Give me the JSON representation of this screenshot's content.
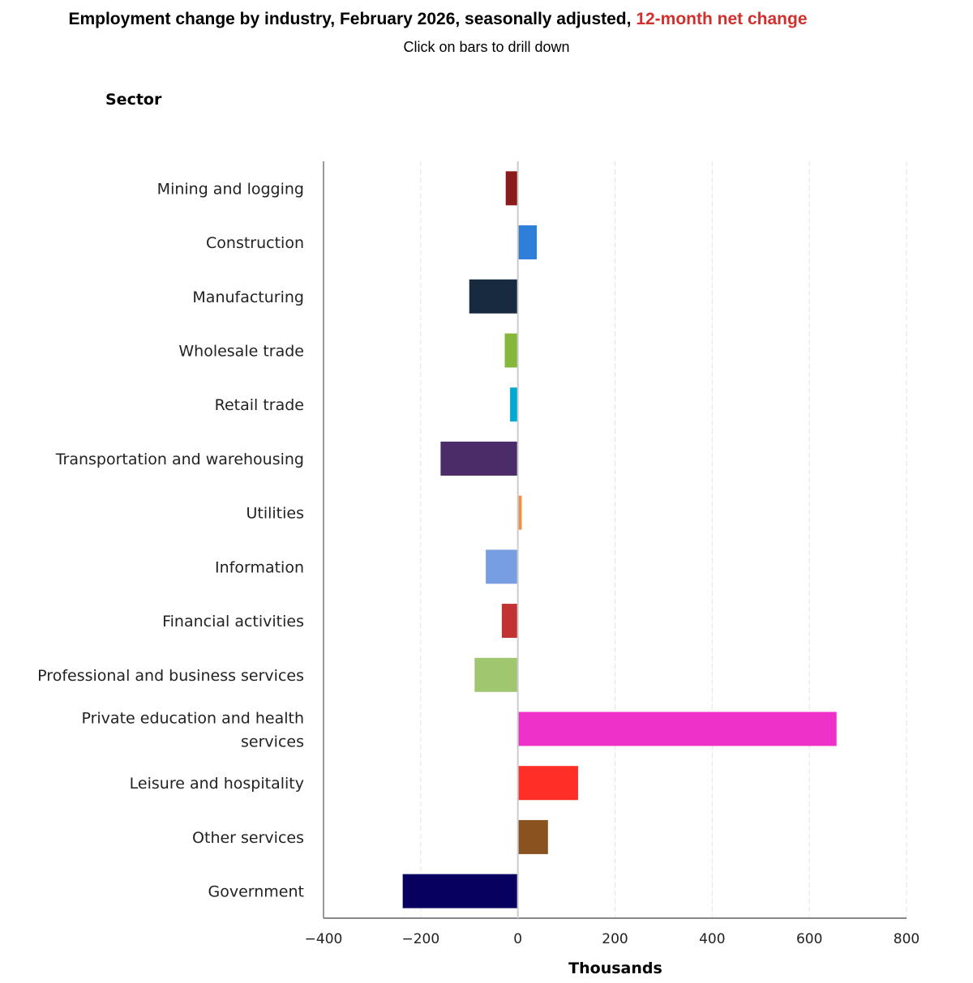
{
  "chart_data": {
    "type": "bar",
    "orientation": "horizontal",
    "title": "Employment change by industry, February 2026, seasonally adjusted,",
    "title_highlight": "12-month net change",
    "subtitle": "Click on bars to drill down",
    "ylabel": "Sector",
    "xlabel": "Thousands",
    "xlim": [
      -400,
      800
    ],
    "xticks": [
      -400,
      -200,
      0,
      200,
      400,
      600,
      800
    ],
    "grid": "vertical dashed",
    "categories": [
      "Mining and logging",
      "Construction",
      "Manufacturing",
      "Wholesale trade",
      "Retail trade",
      "Transportation and warehousing",
      "Utilities",
      "Information",
      "Financial activities",
      "Professional and business services",
      "Private education and health services",
      "Leisure and hospitality",
      "Other services",
      "Government"
    ],
    "values": [
      -25,
      39,
      -100,
      -27,
      -16,
      -159,
      8,
      -66,
      -33,
      -89,
      656,
      124,
      62,
      -237
    ],
    "colors": [
      "#8b1a1a",
      "#2f7ed8",
      "#172a3f",
      "#85b83a",
      "#00a9cf",
      "#4b2c69",
      "#f28f43",
      "#779ee1",
      "#c23232",
      "#a0c66f",
      "#ee31c8",
      "#ff2e26",
      "#8a521e",
      "#08005e"
    ],
    "title_highlight_color": "#d0312d"
  }
}
